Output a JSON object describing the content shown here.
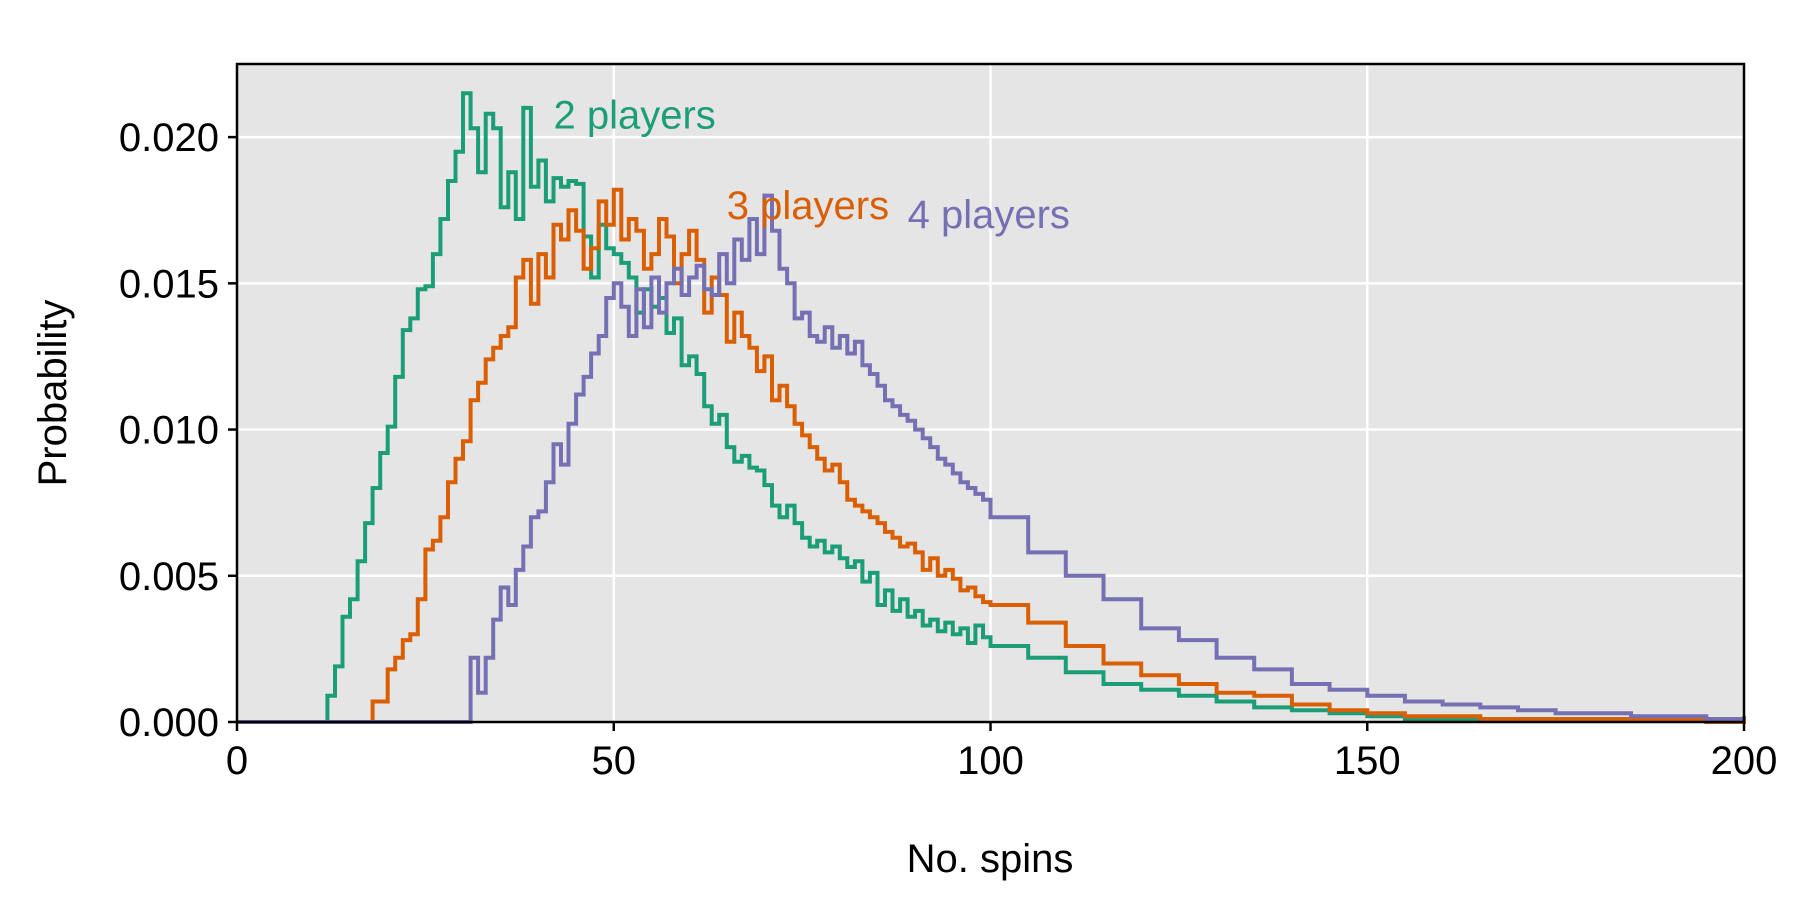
{
  "chart_data": {
    "type": "line",
    "step": true,
    "title": "",
    "xlabel": "No. spins",
    "ylabel": "Probability",
    "xlim": [
      0,
      200
    ],
    "ylim": [
      0,
      0.0225
    ],
    "x_ticks": [
      0,
      50,
      100,
      150,
      200
    ],
    "x_tick_labels": [
      "0",
      "50",
      "100",
      "150",
      "200"
    ],
    "y_ticks": [
      0,
      0.005,
      0.01,
      0.015,
      0.02
    ],
    "y_tick_labels": [
      "0.000",
      "0.005",
      "0.010",
      "0.015",
      "0.020"
    ],
    "grid": true,
    "panel_color": "#E5E5E5",
    "grid_color": "#FFFFFF",
    "x": [
      0,
      5,
      10,
      12,
      13,
      14,
      15,
      16,
      17,
      18,
      19,
      20,
      21,
      22,
      23,
      24,
      25,
      26,
      27,
      28,
      29,
      30,
      31,
      32,
      33,
      34,
      35,
      36,
      37,
      38,
      39,
      40,
      41,
      42,
      43,
      44,
      45,
      46,
      47,
      48,
      49,
      50,
      51,
      52,
      53,
      54,
      55,
      56,
      57,
      58,
      59,
      60,
      61,
      62,
      63,
      64,
      65,
      66,
      67,
      68,
      69,
      70,
      71,
      72,
      73,
      74,
      75,
      76,
      77,
      78,
      79,
      80,
      81,
      82,
      83,
      84,
      85,
      86,
      87,
      88,
      89,
      90,
      91,
      92,
      93,
      94,
      95,
      96,
      97,
      98,
      99,
      100,
      105,
      110,
      115,
      120,
      125,
      130,
      135,
      140,
      145,
      150,
      155,
      160,
      165,
      170,
      175,
      180,
      185,
      190,
      195,
      200
    ],
    "series": [
      {
        "name": "2 players",
        "color": "#1B9E77",
        "label_at": [
          42,
          0.0203
        ],
        "values": [
          0,
          0,
          0,
          0.0009,
          0.0019,
          0.0036,
          0.0042,
          0.0055,
          0.0068,
          0.008,
          0.0092,
          0.0101,
          0.0118,
          0.0134,
          0.0138,
          0.0148,
          0.0149,
          0.016,
          0.0172,
          0.0185,
          0.0195,
          0.0215,
          0.0203,
          0.0188,
          0.0208,
          0.0203,
          0.0176,
          0.0188,
          0.0172,
          0.021,
          0.0183,
          0.0192,
          0.0178,
          0.0186,
          0.0183,
          0.0185,
          0.0184,
          0.0166,
          0.0152,
          0.017,
          0.0162,
          0.016,
          0.0157,
          0.0152,
          0.014,
          0.0148,
          0.0142,
          0.0145,
          0.0133,
          0.0138,
          0.0122,
          0.0125,
          0.0119,
          0.0108,
          0.0102,
          0.0105,
          0.0094,
          0.0089,
          0.0091,
          0.0087,
          0.0086,
          0.0081,
          0.0074,
          0.007,
          0.0074,
          0.0068,
          0.0063,
          0.006,
          0.0062,
          0.0058,
          0.006,
          0.0056,
          0.0053,
          0.0055,
          0.0048,
          0.0051,
          0.004,
          0.0045,
          0.0038,
          0.0042,
          0.0036,
          0.0038,
          0.0033,
          0.0035,
          0.0031,
          0.0034,
          0.003,
          0.0032,
          0.0027,
          0.0033,
          0.0029,
          0.0026,
          0.0022,
          0.0017,
          0.0013,
          0.0011,
          0.0009,
          0.0007,
          0.0005,
          0.0004,
          0.0003,
          0.0002,
          0.0001,
          0.0001,
          0.0001,
          0.0001,
          0.0001,
          0.0001,
          0.0001,
          0.0001,
          0.0001,
          0.0002
        ]
      },
      {
        "name": "3 players",
        "color": "#D95F02",
        "label_at": [
          65,
          0.0172
        ],
        "values": [
          0,
          0,
          0,
          0,
          0,
          0,
          0,
          0,
          0,
          0.0007,
          0.0007,
          0.0018,
          0.0022,
          0.0028,
          0.003,
          0.0042,
          0.0059,
          0.0062,
          0.007,
          0.0082,
          0.009,
          0.0096,
          0.011,
          0.0116,
          0.0124,
          0.0128,
          0.0132,
          0.0135,
          0.0152,
          0.0158,
          0.0143,
          0.016,
          0.0152,
          0.017,
          0.0165,
          0.0175,
          0.0168,
          0.0155,
          0.0162,
          0.0178,
          0.017,
          0.0182,
          0.0165,
          0.0172,
          0.0168,
          0.0155,
          0.016,
          0.0172,
          0.0166,
          0.015,
          0.016,
          0.0168,
          0.0158,
          0.014,
          0.0152,
          0.0146,
          0.013,
          0.014,
          0.0132,
          0.0128,
          0.012,
          0.0125,
          0.011,
          0.0115,
          0.0108,
          0.0102,
          0.0098,
          0.0094,
          0.009,
          0.0086,
          0.0088,
          0.0082,
          0.0076,
          0.0074,
          0.0072,
          0.007,
          0.0068,
          0.0065,
          0.0063,
          0.006,
          0.0061,
          0.0058,
          0.0052,
          0.0056,
          0.005,
          0.0052,
          0.0049,
          0.0045,
          0.0046,
          0.0043,
          0.0041,
          0.004,
          0.0034,
          0.0026,
          0.002,
          0.0016,
          0.0013,
          0.001,
          0.0009,
          0.0006,
          0.0004,
          0.0003,
          0.0002,
          0.0002,
          0.0001,
          0.0001,
          0.0001,
          0.0001,
          0.0001,
          0.0001,
          0.0,
          0.0001
        ]
      },
      {
        "name": "4 players",
        "color": "#7570B3",
        "label_at": [
          89,
          0.0169
        ],
        "values": [
          0,
          0,
          0,
          0,
          0,
          0,
          0,
          0,
          0,
          0,
          0,
          0,
          0,
          0,
          0,
          0,
          0,
          0,
          0,
          0,
          0,
          0,
          0.0022,
          0.001,
          0.0022,
          0.0035,
          0.0046,
          0.004,
          0.0052,
          0.006,
          0.007,
          0.0072,
          0.0082,
          0.0095,
          0.0088,
          0.0102,
          0.0112,
          0.0118,
          0.0126,
          0.0132,
          0.0145,
          0.015,
          0.0142,
          0.0132,
          0.0148,
          0.0135,
          0.0152,
          0.014,
          0.015,
          0.0155,
          0.0146,
          0.0152,
          0.0156,
          0.0148,
          0.0146,
          0.016,
          0.015,
          0.0165,
          0.0158,
          0.0172,
          0.016,
          0.018,
          0.0168,
          0.0155,
          0.015,
          0.0138,
          0.014,
          0.0132,
          0.013,
          0.0135,
          0.0128,
          0.0132,
          0.0126,
          0.013,
          0.0122,
          0.0119,
          0.0115,
          0.011,
          0.0108,
          0.0105,
          0.0103,
          0.01,
          0.0097,
          0.0094,
          0.009,
          0.0088,
          0.0085,
          0.0082,
          0.008,
          0.0078,
          0.0076,
          0.007,
          0.0058,
          0.005,
          0.0042,
          0.0032,
          0.0028,
          0.0022,
          0.0018,
          0.0013,
          0.0011,
          0.0009,
          0.0007,
          0.0006,
          0.0005,
          0.0004,
          0.0003,
          0.0003,
          0.0002,
          0.0002,
          0.0001,
          0.0001
        ]
      }
    ]
  }
}
